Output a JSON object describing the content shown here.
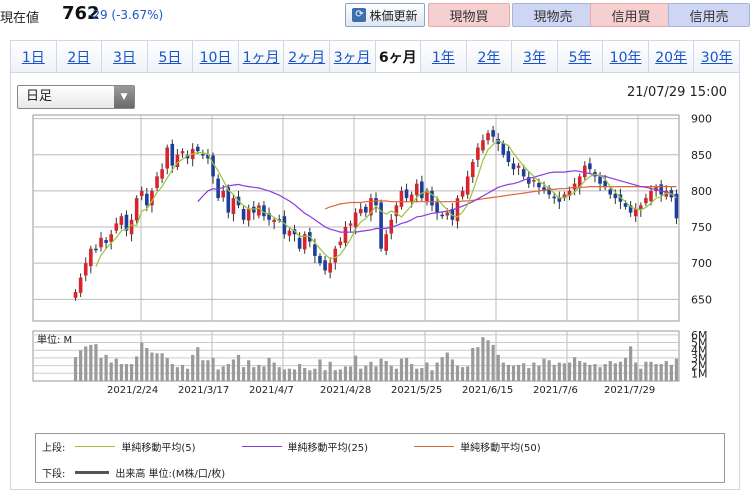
{
  "top": {
    "price_label": "現在値",
    "price_value": "762",
    "price_change": "-29 (-3.67%)",
    "update_button": "株価更新",
    "update_icon": "refresh-icon",
    "buttons": [
      "現物買",
      "現物売",
      "信用買",
      "信用売"
    ]
  },
  "tabs": [
    "1日",
    "2日",
    "3日",
    "5日",
    "10日",
    "1ヶ月",
    "2ヶ月",
    "3ヶ月",
    "6ヶ月",
    "1年",
    "2年",
    "3年",
    "5年",
    "10年",
    "20年",
    "30年"
  ],
  "active_tab": "6ヶ月",
  "chart": {
    "type_select": "日足",
    "timestamp": "21/07/29 15:00",
    "price_ticks": [
      "900",
      "850",
      "800",
      "750",
      "700",
      "650"
    ],
    "volume_ticks": [
      "6M",
      "5M",
      "4M",
      "3M",
      "2M",
      "1M"
    ],
    "volume_unit": "単位: M",
    "date_labels": [
      "2021/2/24",
      "2021/3/17",
      "2021/4/7",
      "2021/4/28",
      "2021/5/25",
      "2021/6/15",
      "2021/7/6",
      "2021/7/29"
    ]
  },
  "legend": {
    "upper_label": "上段:",
    "lower_label": "下段:",
    "ma5": "単純移動平均(5)",
    "ma25": "単純移動平均(25)",
    "ma50": "単純移動平均(50)",
    "volume": "出来高 単位:(M株/口/枚)"
  },
  "colors": {
    "up": "#d8242b",
    "down": "#1a3f9c",
    "ma5": "#9ac43c",
    "ma25": "#8a3ae0",
    "ma50": "#e0643a",
    "volume": "#9a9a9a"
  },
  "chart_data": {
    "type": "candlestick",
    "title": "",
    "interval": "日足",
    "ylim": [
      620,
      905
    ],
    "price_ticks": [
      650,
      700,
      750,
      800,
      850,
      900
    ],
    "volume_ylim": [
      0,
      6.5
    ],
    "volume_unit": "M",
    "date_labels": [
      "2021/2/24",
      "2021/3/17",
      "2021/4/7",
      "2021/4/28",
      "2021/5/25",
      "2021/6/15",
      "2021/7/6",
      "2021/7/29"
    ],
    "close": [
      660,
      680,
      700,
      720,
      718,
      735,
      728,
      740,
      755,
      765,
      745,
      760,
      790,
      800,
      780,
      800,
      820,
      830,
      860,
      835,
      850,
      855,
      845,
      858,
      855,
      850,
      845,
      820,
      790,
      800,
      770,
      790,
      780,
      760,
      775,
      770,
      780,
      765,
      760,
      760,
      760,
      740,
      745,
      740,
      720,
      740,
      730,
      710,
      700,
      690,
      700,
      720,
      730,
      750,
      755,
      770,
      775,
      770,
      790,
      780,
      720,
      740,
      760,
      780,
      800,
      790,
      795,
      810,
      790,
      800,
      780,
      770,
      765,
      770,
      760,
      790,
      800,
      820,
      840,
      860,
      870,
      880,
      875,
      865,
      850,
      840,
      830,
      835,
      820,
      810,
      815,
      805,
      800,
      795,
      790,
      785,
      795,
      800,
      810,
      820,
      835,
      830,
      820,
      810,
      805,
      795,
      790,
      785,
      778,
      770,
      775,
      780,
      790,
      800,
      805,
      795,
      800,
      791,
      762
    ],
    "volume": [
      3.1,
      4.0,
      4.5,
      4.7,
      4.8,
      3.0,
      3.4,
      2.4,
      2.9,
      2.2,
      2.2,
      2.2,
      3.2,
      5.0,
      4.3,
      3.7,
      3.6,
      3.6,
      3.0,
      2.2,
      1.8,
      2.1,
      1.6,
      3.4,
      4.4,
      2.7,
      2.7,
      3.0,
      1.5,
      1.9,
      2.2,
      2.8,
      3.4,
      1.8,
      2.7,
      1.8,
      2.1,
      1.9,
      3.0,
      2.4,
      1.8,
      1.5,
      1.6,
      1.5,
      2.2,
      1.7,
      1.4,
      1.6,
      2.8,
      1.4,
      2.5,
      1.4,
      1.5,
      1.9,
      1.9,
      3.3,
      1.6,
      2.0,
      2.5,
      1.9,
      2.9,
      2.6,
      2.0,
      1.6,
      2.9,
      3.0,
      2.2,
      1.6,
      1.7,
      2.4,
      1.4,
      2.4,
      3.1,
      3.7,
      2.8,
      2.0,
      1.8,
      1.9,
      4.3,
      4.4,
      5.7,
      5.3,
      4.7,
      3.4,
      2.4,
      2.1,
      2.0,
      2.1,
      2.3,
      1.7,
      2.4,
      2.0,
      2.9,
      2.7,
      2.1,
      2.4,
      2.3,
      2.4,
      3.1,
      2.6,
      2.4,
      2.1,
      2.2,
      1.8,
      2.2,
      2.6,
      2.3,
      2.5,
      3.0,
      4.5,
      2.4,
      1.6,
      2.5,
      2.5,
      2.2,
      2.2,
      2.6,
      2.1,
      2.9
    ],
    "ma5": [
      null,
      null,
      null,
      null,
      695,
      711,
      720,
      728,
      735,
      745,
      747,
      753,
      752,
      772,
      775,
      786,
      798,
      806,
      818,
      829,
      839,
      844,
      849,
      851,
      853,
      853,
      851,
      838,
      828,
      815,
      801,
      795,
      786,
      780,
      775,
      775,
      776,
      770,
      768,
      763,
      759,
      755,
      749,
      745,
      737,
      737,
      737,
      728,
      720,
      712,
      706,
      708,
      712,
      722,
      733,
      747,
      757,
      762,
      770,
      779,
      772,
      768,
      772,
      769,
      764,
      772,
      780,
      791,
      797,
      799,
      795,
      790,
      781,
      774,
      766,
      764,
      771,
      781,
      800,
      820,
      842,
      857,
      864,
      870,
      866,
      863,
      852,
      843,
      834,
      827,
      820,
      813,
      809,
      803,
      797,
      790,
      791,
      794,
      798,
      806,
      814,
      820,
      823,
      821,
      816,
      806,
      798,
      791,
      785,
      778,
      775,
      774,
      777,
      783,
      790,
      792,
      797,
      796,
      790
    ],
    "ma25": [
      null,
      null,
      null,
      null,
      null,
      null,
      null,
      null,
      null,
      null,
      null,
      null,
      null,
      null,
      null,
      null,
      null,
      null,
      null,
      null,
      null,
      null,
      null,
      null,
      785,
      793,
      800,
      803,
      802,
      805,
      807,
      808,
      809,
      807,
      806,
      805,
      804,
      802,
      800,
      797,
      794,
      790,
      786,
      781,
      775,
      769,
      765,
      760,
      755,
      750,
      747,
      745,
      743,
      743,
      743,
      743,
      744,
      745,
      746,
      748,
      748,
      748,
      750,
      752,
      755,
      757,
      760,
      764,
      765,
      767,
      769,
      770,
      771,
      772,
      774,
      776,
      779,
      782,
      785,
      789,
      793,
      797,
      801,
      805,
      807,
      809,
      810,
      812,
      815,
      817,
      819,
      821,
      823,
      825,
      826,
      826,
      826,
      827,
      828,
      827,
      825,
      824,
      822,
      821,
      820,
      818,
      816,
      814,
      812,
      810,
      808,
      806,
      805,
      803,
      802,
      800,
      798,
      796,
      792
    ],
    "ma50": [
      null,
      null,
      null,
      null,
      null,
      null,
      null,
      null,
      null,
      null,
      null,
      null,
      null,
      null,
      null,
      null,
      null,
      null,
      null,
      null,
      null,
      null,
      null,
      null,
      null,
      null,
      null,
      null,
      null,
      null,
      null,
      null,
      null,
      null,
      null,
      null,
      null,
      null,
      null,
      null,
      null,
      null,
      null,
      null,
      null,
      null,
      null,
      null,
      null,
      775,
      778,
      780,
      782,
      783,
      784,
      784,
      784,
      785,
      785,
      786,
      786,
      786,
      785,
      785,
      785,
      785,
      785,
      785,
      785,
      785,
      785,
      785,
      785,
      785,
      785,
      785,
      786,
      786,
      787,
      788,
      789,
      790,
      791,
      792,
      793,
      794,
      795,
      796,
      797,
      798,
      799,
      800,
      801,
      802,
      802,
      803,
      803,
      804,
      805,
      805,
      805,
      806,
      806,
      806,
      806,
      806,
      806,
      806,
      806,
      806,
      806,
      806,
      806,
      806,
      806,
      806,
      806,
      806,
      806
    ]
  }
}
